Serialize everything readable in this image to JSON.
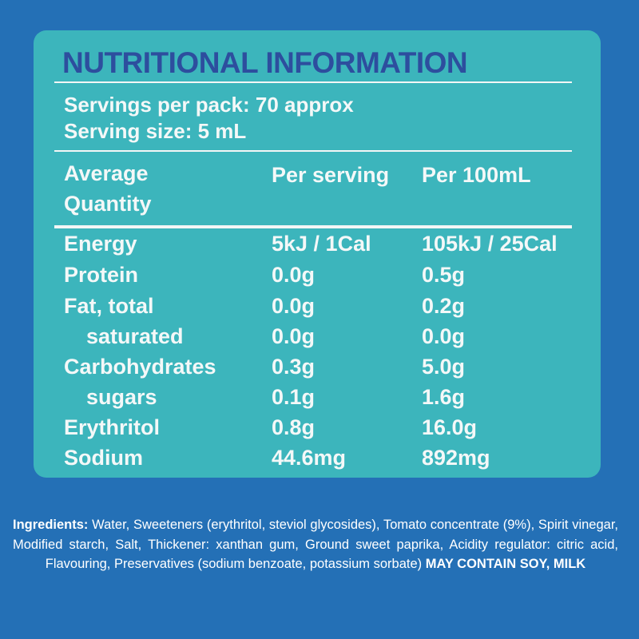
{
  "title": "NUTRITIONAL INFORMATION",
  "servings": [
    "Servings per pack:  70 approx",
    "Serving size: 5 mL"
  ],
  "table": {
    "header": [
      "Average Quantity",
      "Per serving",
      "Per 100mL"
    ],
    "rows": [
      [
        "Energy",
        "5kJ / 1Cal",
        "105kJ / 25Cal"
      ],
      [
        "Protein",
        "0.0g",
        "0.5g"
      ],
      [
        "Fat, total",
        "0.0g",
        "0.2g"
      ],
      [
        "saturated",
        "0.0g",
        "0.0g"
      ],
      [
        "Carbohydrates",
        "0.3g",
        "5.0g"
      ],
      [
        "sugars",
        "0.1g",
        "1.6g"
      ],
      [
        "Erythritol",
        "0.8g",
        "16.0g"
      ],
      [
        "Sodium",
        "44.6mg",
        "892mg"
      ]
    ]
  },
  "ingredients": {
    "label": "Ingredients:",
    "text": "Water, Sweeteners (erythritol, steviol glycosides), Tomato concentrate (9%), Spirit vinegar, Modified starch, Salt, Thickener: xanthan gum, Ground sweet paprika, Acidity regulator: citric acid, Flavouring, Preservatives (sodium benzoate, potassium sorbate)",
    "warning": "MAY CONTAIN SOY, MILK"
  }
}
